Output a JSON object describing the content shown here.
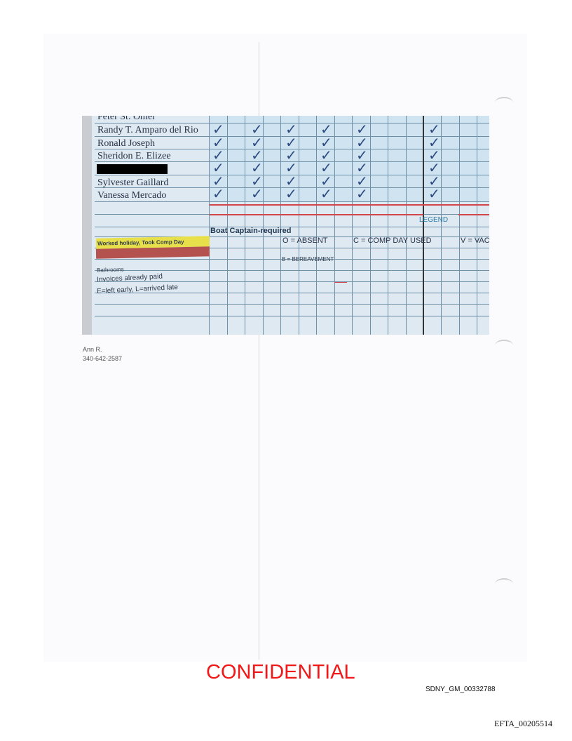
{
  "sheet": {
    "names": [
      "Peter St. Omer",
      "Randy T. Amparo del Rio",
      "Ronald Joseph",
      "Sheridon E. Elizee",
      "",
      "Sylvester Gaillard",
      "Vanessa Mercado"
    ],
    "checkmark": "✓",
    "section_header": "Boat Captain-required",
    "key_rows": [
      "Worked holiday, Took Comp Day",
      "",
      "Bathrooms",
      "Invoices already paid",
      "E=left early, L=arrived late"
    ],
    "legend_title": "LEGEND",
    "legend": {
      "absent": "O = ABSENT",
      "comp": "C = COMP DAY USED",
      "vacation": "V = VAC",
      "bereavement": "B = BEREAVEMENT"
    },
    "colors": {
      "yellow": "#e8e04a",
      "red": "#b3524f",
      "redline": "#d2454a",
      "legend_blue": "#2f7ea8"
    }
  },
  "contact": {
    "name": "Ann R.",
    "phone": "340-642-2587"
  },
  "footer": {
    "stamp": "CONFIDENTIAL",
    "bates": "SDNY_GM_00332788",
    "efta": "EFTA_00205514"
  }
}
